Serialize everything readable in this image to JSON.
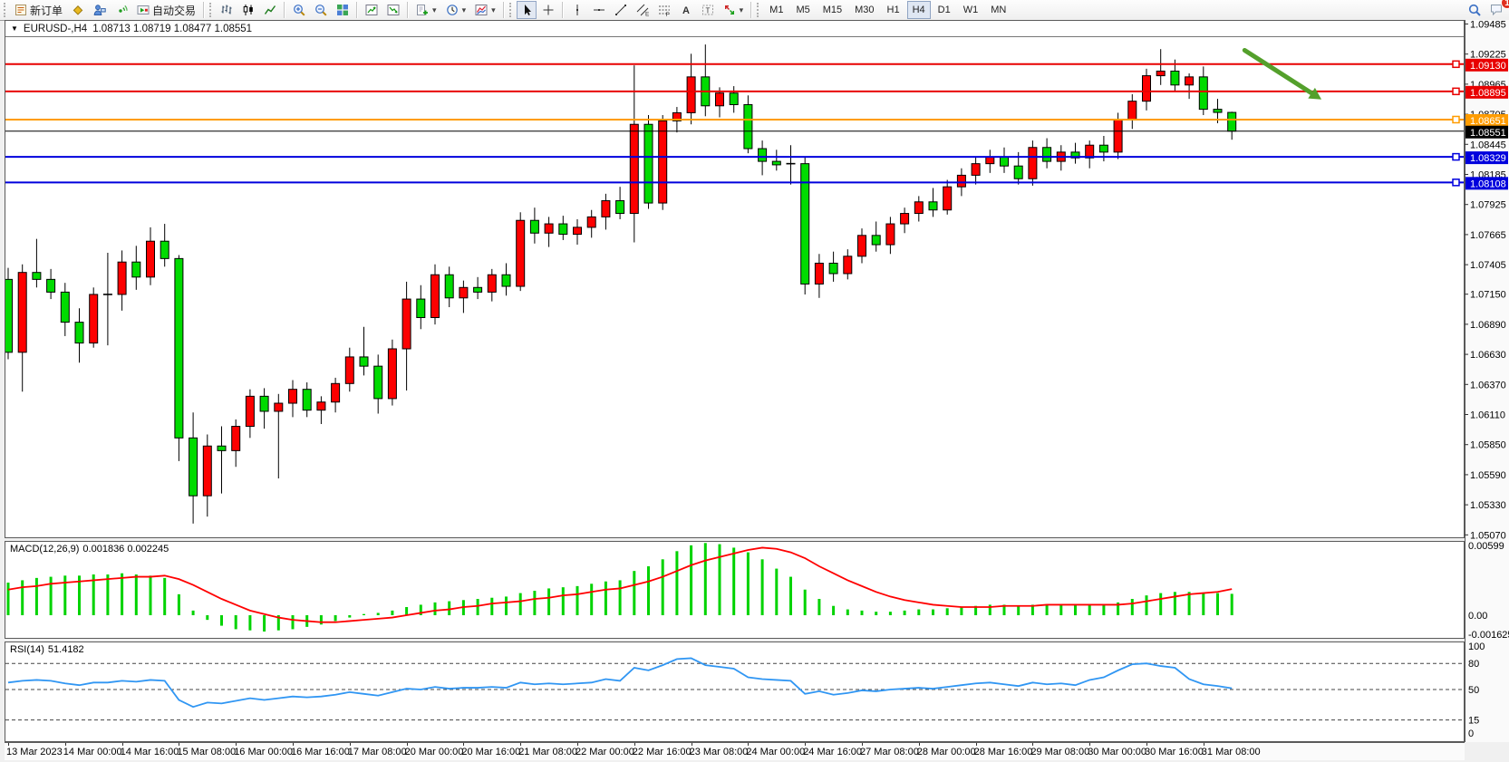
{
  "toolbar": {
    "new_order": "新订单",
    "auto_trading": "自动交易",
    "icon_letters": {
      "text": "A",
      "label": "T",
      "channel": "E",
      "fibo": "F"
    },
    "timeframes": [
      "M1",
      "M5",
      "M15",
      "M30",
      "H1",
      "H4",
      "D1",
      "W1",
      "MN"
    ],
    "active_timeframe": "H4",
    "notification_count": "1"
  },
  "chart_header": {
    "dropdown_glyph": "▼",
    "symbol": "EURUSD-,H4",
    "ohlc": "1.08713 1.08719 1.08477 1.08551"
  },
  "macd_panel": {
    "label": "MACD(12,26,9)",
    "values": "0.001836 0.002245",
    "axis_labels": [
      "0.00599",
      "0.00",
      "-0.001625"
    ]
  },
  "rsi_panel": {
    "label": "RSI(14)",
    "value": "51.4182",
    "axis_labels": [
      "100",
      "80",
      "50",
      "15",
      "0"
    ]
  },
  "price_axis": {
    "ticks": [
      "1.09485",
      "1.09225",
      "1.08965",
      "1.08705",
      "1.08445",
      "1.08185",
      "1.07925",
      "1.07665",
      "1.07405",
      "1.07150",
      "1.06890",
      "1.06630",
      "1.06370",
      "1.06110",
      "1.05850",
      "1.05590",
      "1.05330",
      "1.05070"
    ],
    "line_labels": [
      {
        "text": "1.09130",
        "color": "#e80000"
      },
      {
        "text": "1.08895",
        "color": "#e80000"
      },
      {
        "text": "1.08651",
        "color": "#ff9c00"
      },
      {
        "text": "1.08551",
        "color": "#000000"
      },
      {
        "text": "1.08329",
        "color": "#0000dd"
      },
      {
        "text": "1.08108",
        "color": "#0000dd"
      }
    ]
  },
  "time_axis": [
    "13 Mar 2023",
    "14 Mar 00:00",
    "14 Mar 16:00",
    "15 Mar 08:00",
    "16 Mar 00:00",
    "16 Mar 16:00",
    "17 Mar 08:00",
    "20 Mar 00:00",
    "20 Mar 16:00",
    "21 Mar 08:00",
    "22 Mar 00:00",
    "22 Mar 16:00",
    "23 Mar 08:00",
    "24 Mar 00:00",
    "24 Mar 16:00",
    "27 Mar 08:00",
    "28 Mar 00:00",
    "28 Mar 16:00",
    "29 Mar 08:00",
    "30 Mar 00:00",
    "30 Mar 16:00",
    "31 Mar 08:00"
  ],
  "chart_data": {
    "type": "candlestick",
    "symbol": "EURUSD",
    "timeframe": "H4",
    "current_price": 1.08551,
    "price_range": [
      1.0504,
      1.0952
    ],
    "up_color": "#fd0000",
    "down_color": "#00db00",
    "candles": [
      [
        1.0727,
        1.0737,
        1.0658,
        1.0664
      ],
      [
        1.0664,
        1.074,
        1.063,
        1.0733
      ],
      [
        1.0733,
        1.0762,
        1.072,
        1.0727
      ],
      [
        1.0727,
        1.0736,
        1.071,
        1.0716
      ],
      [
        1.0716,
        1.0724,
        1.0678,
        1.069
      ],
      [
        1.069,
        1.0702,
        1.0655,
        1.0672
      ],
      [
        1.0672,
        1.072,
        1.0668,
        1.0714
      ],
      [
        1.0714,
        1.075,
        1.067,
        1.0714
      ],
      [
        1.0714,
        1.0752,
        1.07,
        1.0742
      ],
      [
        1.0742,
        1.0756,
        1.0718,
        1.0729
      ],
      [
        1.0729,
        1.0772,
        1.0722,
        1.076
      ],
      [
        1.076,
        1.0775,
        1.0738,
        1.0745
      ],
      [
        1.0745,
        1.0748,
        1.057,
        1.059
      ],
      [
        1.059,
        1.0612,
        1.0516,
        1.054
      ],
      [
        1.054,
        1.0593,
        1.0522,
        1.0583
      ],
      [
        1.0583,
        1.06,
        1.0542,
        1.0579
      ],
      [
        1.0579,
        1.0606,
        1.0565,
        1.06
      ],
      [
        1.06,
        1.0632,
        1.059,
        1.0626
      ],
      [
        1.0626,
        1.0633,
        1.0598,
        1.0613
      ],
      [
        1.0613,
        1.0628,
        1.0555,
        1.062
      ],
      [
        1.062,
        1.064,
        1.0608,
        1.0632
      ],
      [
        1.0632,
        1.0638,
        1.0608,
        1.0614
      ],
      [
        1.0614,
        1.0626,
        1.0602,
        1.0621
      ],
      [
        1.0621,
        1.0642,
        1.0612,
        1.0637
      ],
      [
        1.0637,
        1.0668,
        1.063,
        1.066
      ],
      [
        1.066,
        1.0686,
        1.0644,
        1.0652
      ],
      [
        1.0652,
        1.0662,
        1.0611,
        1.0624
      ],
      [
        1.0624,
        1.0675,
        1.0618,
        1.0667
      ],
      [
        1.0667,
        1.0725,
        1.0631,
        1.071
      ],
      [
        1.071,
        1.0722,
        1.0684,
        1.0694
      ],
      [
        1.0694,
        1.074,
        1.0688,
        1.0731
      ],
      [
        1.0731,
        1.0738,
        1.0703,
        1.0711
      ],
      [
        1.0711,
        1.0726,
        1.0698,
        1.072
      ],
      [
        1.072,
        1.0729,
        1.071,
        1.0716
      ],
      [
        1.0716,
        1.0736,
        1.0708,
        1.0731
      ],
      [
        1.0731,
        1.0741,
        1.0713,
        1.0721
      ],
      [
        1.0721,
        1.0785,
        1.0717,
        1.0778
      ],
      [
        1.0778,
        1.0789,
        1.0758,
        1.0767
      ],
      [
        1.0767,
        1.0781,
        1.0755,
        1.0775
      ],
      [
        1.0775,
        1.0782,
        1.0761,
        1.0766
      ],
      [
        1.0766,
        1.0779,
        1.0757,
        1.0772
      ],
      [
        1.0772,
        1.0787,
        1.0763,
        1.0781
      ],
      [
        1.0781,
        1.0801,
        1.077,
        1.0795
      ],
      [
        1.0795,
        1.0807,
        1.0779,
        1.0784
      ],
      [
        1.0784,
        1.0912,
        1.0759,
        1.0861
      ],
      [
        1.0861,
        1.0869,
        1.0788,
        1.0793
      ],
      [
        1.0793,
        1.0869,
        1.0787,
        1.0864
      ],
      [
        1.0864,
        1.0876,
        1.0854,
        1.0871
      ],
      [
        1.0871,
        1.0922,
        1.0861,
        1.0902
      ],
      [
        1.0902,
        1.093,
        1.0868,
        1.0877
      ],
      [
        1.0877,
        1.0893,
        1.0867,
        1.0888
      ],
      [
        1.0888,
        1.0894,
        1.0871,
        1.0878
      ],
      [
        1.0878,
        1.0886,
        1.0836,
        1.084
      ],
      [
        1.084,
        1.0847,
        1.0817,
        1.0829
      ],
      [
        1.0829,
        1.0839,
        1.0821,
        1.0826
      ],
      [
        1.0827,
        1.0843,
        1.0809,
        1.0827
      ],
      [
        1.0827,
        1.0833,
        1.0714,
        1.0723
      ],
      [
        1.0723,
        1.0749,
        1.0711,
        1.0741
      ],
      [
        1.0741,
        1.0751,
        1.0725,
        1.0732
      ],
      [
        1.0732,
        1.0753,
        1.0727,
        1.0747
      ],
      [
        1.0747,
        1.0771,
        1.0741,
        1.0765
      ],
      [
        1.0765,
        1.0777,
        1.0751,
        1.0757
      ],
      [
        1.0757,
        1.0781,
        1.0749,
        1.0775
      ],
      [
        1.0775,
        1.0789,
        1.0767,
        1.0784
      ],
      [
        1.0784,
        1.0799,
        1.0777,
        1.0794
      ],
      [
        1.0794,
        1.0806,
        1.0781,
        1.0787
      ],
      [
        1.0787,
        1.0813,
        1.0783,
        1.0807
      ],
      [
        1.0807,
        1.0823,
        1.0799,
        1.0817
      ],
      [
        1.0817,
        1.0833,
        1.0809,
        1.0827
      ],
      [
        1.0827,
        1.0839,
        1.0819,
        1.0833
      ],
      [
        1.0833,
        1.0841,
        1.0819,
        1.0825
      ],
      [
        1.0825,
        1.0837,
        1.0809,
        1.0814
      ],
      [
        1.0814,
        1.0847,
        1.0808,
        1.0841
      ],
      [
        1.0841,
        1.0849,
        1.0823,
        1.0829
      ],
      [
        1.0829,
        1.0843,
        1.0821,
        1.0837
      ],
      [
        1.0837,
        1.0845,
        1.0827,
        1.0832
      ],
      [
        1.0832,
        1.0847,
        1.0823,
        1.0843
      ],
      [
        1.0843,
        1.0851,
        1.0829,
        1.0837
      ],
      [
        1.0837,
        1.0871,
        1.0831,
        1.0865
      ],
      [
        1.0865,
        1.0887,
        1.0857,
        1.0881
      ],
      [
        1.0881,
        1.0909,
        1.0873,
        1.0903
      ],
      [
        1.0903,
        1.0926,
        1.0895,
        1.0907
      ],
      [
        1.0907,
        1.0917,
        1.0889,
        1.0895
      ],
      [
        1.0895,
        1.0905,
        1.0883,
        1.0902
      ],
      [
        1.0902,
        1.0911,
        1.0869,
        1.0874
      ],
      [
        1.0874,
        1.0883,
        1.0862,
        1.08713
      ],
      [
        1.08713,
        1.08719,
        1.08477,
        1.08551
      ]
    ],
    "hlines": [
      {
        "price": 1.0913,
        "color": "#e80000",
        "lw": 2,
        "marker": true
      },
      {
        "price": 1.08895,
        "color": "#e80000",
        "lw": 2,
        "marker": true
      },
      {
        "price": 1.08651,
        "color": "#ff9c00",
        "lw": 2,
        "marker": true
      },
      {
        "price": 1.08551,
        "color": "#000000",
        "lw": 1,
        "marker": false
      },
      {
        "price": 1.08329,
        "color": "#0000dd",
        "lw": 2,
        "marker": true
      },
      {
        "price": 1.08108,
        "color": "#0000dd",
        "lw": 2,
        "marker": true
      }
    ],
    "arrow": {
      "t1": 86.9,
      "p1": 1.0925,
      "t2": 91.6,
      "p2": 1.0888,
      "color": "#54a02c"
    },
    "macd": {
      "range": [
        -0.0018,
        0.0069
      ],
      "histogram": [
        0.0028,
        0.003,
        0.0032,
        0.0033,
        0.0034,
        0.0034,
        0.0035,
        0.0035,
        0.0036,
        0.0035,
        0.0034,
        0.0032,
        0.0018,
        0.0004,
        -0.0004,
        -0.0009,
        -0.0012,
        -0.0013,
        -0.0014,
        -0.0013,
        -0.0012,
        -0.001,
        -0.0008,
        -0.0005,
        -0.0002,
        0.0001,
        0.0002,
        0.0004,
        0.0007,
        0.0009,
        0.0011,
        0.0012,
        0.0013,
        0.0014,
        0.0015,
        0.0016,
        0.0019,
        0.0021,
        0.0023,
        0.0024,
        0.0025,
        0.0027,
        0.0029,
        0.003,
        0.0038,
        0.0042,
        0.0048,
        0.0055,
        0.006,
        0.0062,
        0.0061,
        0.0058,
        0.0054,
        0.0048,
        0.004,
        0.0033,
        0.0022,
        0.0014,
        0.0008,
        0.0005,
        0.0004,
        0.0003,
        0.0003,
        0.0004,
        0.0005,
        0.0005,
        0.0006,
        0.0007,
        0.0008,
        0.0009,
        0.0009,
        0.0008,
        0.0009,
        0.0009,
        0.0009,
        0.0009,
        0.0009,
        0.0009,
        0.0011,
        0.0014,
        0.0017,
        0.0019,
        0.002,
        0.002,
        0.0019,
        0.0019,
        0.001836
      ],
      "signal": [
        0.0022,
        0.0024,
        0.0025,
        0.0027,
        0.0028,
        0.0029,
        0.003,
        0.0031,
        0.0032,
        0.0033,
        0.0033,
        0.0034,
        0.0031,
        0.0026,
        0.002,
        0.0014,
        0.0009,
        0.0004,
        0.0001,
        -0.0002,
        -0.0004,
        -0.0005,
        -0.0006,
        -0.0006,
        -0.0005,
        -0.0004,
        -0.0003,
        -0.0002,
        0.0,
        0.0002,
        0.0004,
        0.0005,
        0.0007,
        0.0008,
        0.001,
        0.0011,
        0.0012,
        0.0014,
        0.0015,
        0.0017,
        0.0018,
        0.002,
        0.0022,
        0.0023,
        0.0026,
        0.0029,
        0.0033,
        0.0038,
        0.0043,
        0.0047,
        0.005,
        0.0053,
        0.0056,
        0.0058,
        0.0057,
        0.0054,
        0.0049,
        0.0042,
        0.0036,
        0.003,
        0.0025,
        0.002,
        0.0016,
        0.0013,
        0.0011,
        0.0009,
        0.0008,
        0.0007,
        0.0007,
        0.0007,
        0.0008,
        0.0008,
        0.0008,
        0.0009,
        0.0009,
        0.0009,
        0.0009,
        0.0009,
        0.0009,
        0.001,
        0.0012,
        0.0014,
        0.0016,
        0.0018,
        0.0019,
        0.002,
        0.002245
      ]
    },
    "rsi": {
      "range": [
        0,
        100
      ],
      "levels": [
        80,
        50,
        15
      ],
      "values": [
        58,
        60,
        61,
        60,
        57,
        55,
        58,
        58,
        60,
        59,
        61,
        60,
        38,
        30,
        35,
        34,
        37,
        40,
        38,
        40,
        42,
        41,
        42,
        44,
        47,
        45,
        43,
        47,
        51,
        50,
        53,
        51,
        52,
        52,
        53,
        52,
        58,
        56,
        57,
        56,
        57,
        58,
        62,
        60,
        75,
        72,
        78,
        85,
        86,
        78,
        76,
        74,
        64,
        62,
        61,
        60,
        45,
        48,
        44,
        46,
        49,
        48,
        50,
        51,
        52,
        51,
        53,
        55,
        57,
        58,
        56,
        54,
        58,
        56,
        57,
        55,
        61,
        64,
        72,
        79,
        80,
        77,
        75,
        62,
        56,
        54,
        51.4
      ]
    }
  }
}
